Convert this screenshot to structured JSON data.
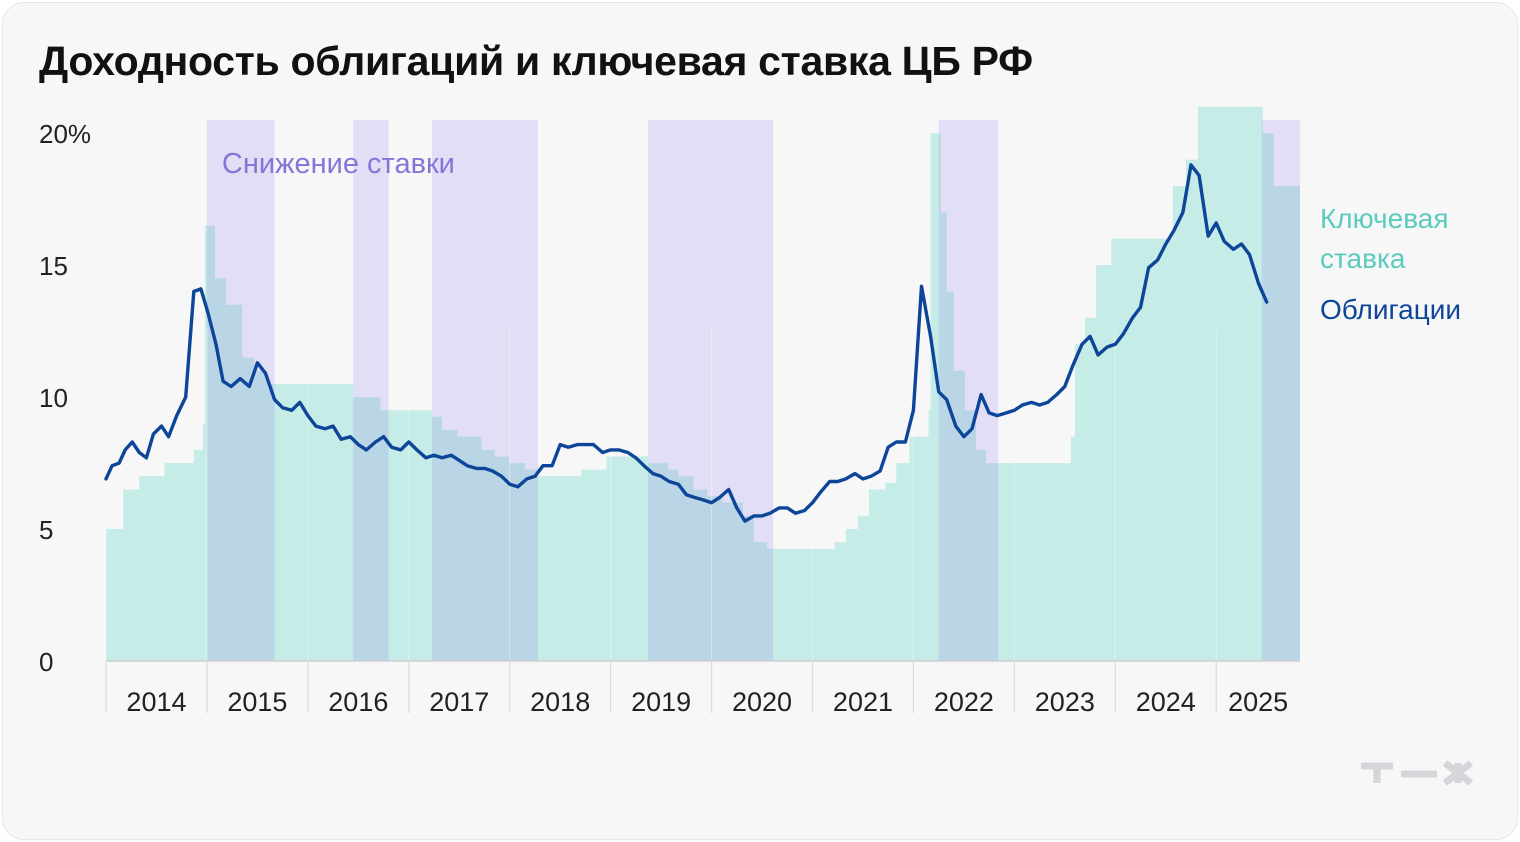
{
  "title": "Доходность облигаций и ключевая ставка ЦБ РФ",
  "chart_data": {
    "type": "area",
    "title": "Доходность облигаций и ключевая ставка ЦБ РФ",
    "xlabel": "",
    "ylabel": "",
    "ylim": [
      0,
      20.5
    ],
    "xlim": [
      2014.0,
      2025.83
    ],
    "y_ticks": [
      {
        "value": 0,
        "label": "0"
      },
      {
        "value": 5,
        "label": "5"
      },
      {
        "value": 10,
        "label": "10"
      },
      {
        "value": 15,
        "label": "15"
      },
      {
        "value": 20,
        "label": "20%"
      }
    ],
    "x_ticks": [
      "2014",
      "2015",
      "2016",
      "2017",
      "2018",
      "2019",
      "2020",
      "2021",
      "2022",
      "2023",
      "2024",
      "2025"
    ],
    "shading_label": "Снижение ставки",
    "rate_cut_periods": [
      [
        2015.0,
        2015.67
      ],
      [
        2016.45,
        2016.8
      ],
      [
        2017.23,
        2018.28
      ],
      [
        2019.37,
        2020.61
      ],
      [
        2022.25,
        2022.84
      ],
      [
        2025.45,
        2025.83
      ]
    ],
    "series": [
      {
        "name": "Ключевая ставка",
        "kind": "step-area",
        "color": "#c5ece6",
        "points": [
          [
            2014.0,
            5.0
          ],
          [
            2014.17,
            6.5
          ],
          [
            2014.33,
            7.0
          ],
          [
            2014.58,
            7.5
          ],
          [
            2014.87,
            8.0
          ],
          [
            2014.96,
            9.0
          ],
          [
            2014.98,
            16.5
          ],
          [
            2015.08,
            14.5
          ],
          [
            2015.19,
            13.5
          ],
          [
            2015.35,
            11.5
          ],
          [
            2015.47,
            11.0
          ],
          [
            2015.6,
            10.5
          ],
          [
            2016.45,
            10.0
          ],
          [
            2016.72,
            9.5
          ],
          [
            2017.23,
            9.25
          ],
          [
            2017.33,
            8.75
          ],
          [
            2017.48,
            8.5
          ],
          [
            2017.72,
            8.0
          ],
          [
            2017.85,
            7.75
          ],
          [
            2018.0,
            7.5
          ],
          [
            2018.15,
            7.25
          ],
          [
            2018.28,
            7.0
          ],
          [
            2018.71,
            7.25
          ],
          [
            2018.96,
            7.75
          ],
          [
            2019.37,
            7.5
          ],
          [
            2019.57,
            7.25
          ],
          [
            2019.67,
            7.0
          ],
          [
            2019.82,
            6.5
          ],
          [
            2019.96,
            6.25
          ],
          [
            2020.11,
            6.0
          ],
          [
            2020.31,
            5.5
          ],
          [
            2020.42,
            4.5
          ],
          [
            2020.55,
            4.25
          ],
          [
            2021.22,
            4.5
          ],
          [
            2021.33,
            5.0
          ],
          [
            2021.45,
            5.5
          ],
          [
            2021.56,
            6.5
          ],
          [
            2021.72,
            6.75
          ],
          [
            2021.83,
            7.5
          ],
          [
            2021.96,
            8.5
          ],
          [
            2022.15,
            9.5
          ],
          [
            2022.17,
            20.0
          ],
          [
            2022.27,
            17.0
          ],
          [
            2022.33,
            14.0
          ],
          [
            2022.4,
            11.0
          ],
          [
            2022.51,
            9.5
          ],
          [
            2022.62,
            8.0
          ],
          [
            2022.72,
            7.5
          ],
          [
            2023.56,
            8.5
          ],
          [
            2023.6,
            12.0
          ],
          [
            2023.7,
            13.0
          ],
          [
            2023.81,
            15.0
          ],
          [
            2023.96,
            16.0
          ],
          [
            2024.57,
            18.0
          ],
          [
            2024.7,
            19.0
          ],
          [
            2024.82,
            21.0
          ],
          [
            2025.46,
            20.0
          ],
          [
            2025.57,
            18.0
          ],
          [
            2025.83,
            18.0
          ]
        ]
      },
      {
        "name": "Облигации",
        "kind": "line",
        "color": "#0d4599",
        "points": [
          [
            2014.0,
            6.9
          ],
          [
            2014.06,
            7.4
          ],
          [
            2014.13,
            7.5
          ],
          [
            2014.19,
            8.0
          ],
          [
            2014.26,
            8.3
          ],
          [
            2014.33,
            7.9
          ],
          [
            2014.4,
            7.7
          ],
          [
            2014.47,
            8.6
          ],
          [
            2014.55,
            8.9
          ],
          [
            2014.62,
            8.5
          ],
          [
            2014.7,
            9.3
          ],
          [
            2014.79,
            10.0
          ],
          [
            2014.87,
            14.0
          ],
          [
            2014.94,
            14.1
          ],
          [
            2015.01,
            13.2
          ],
          [
            2015.09,
            12.0
          ],
          [
            2015.16,
            10.6
          ],
          [
            2015.24,
            10.4
          ],
          [
            2015.33,
            10.7
          ],
          [
            2015.42,
            10.4
          ],
          [
            2015.5,
            11.3
          ],
          [
            2015.58,
            10.9
          ],
          [
            2015.67,
            9.9
          ],
          [
            2015.75,
            9.6
          ],
          [
            2015.84,
            9.5
          ],
          [
            2015.92,
            9.8
          ],
          [
            2016.0,
            9.3
          ],
          [
            2016.08,
            8.9
          ],
          [
            2016.17,
            8.8
          ],
          [
            2016.25,
            8.9
          ],
          [
            2016.33,
            8.4
          ],
          [
            2016.42,
            8.5
          ],
          [
            2016.5,
            8.2
          ],
          [
            2016.58,
            8.0
          ],
          [
            2016.67,
            8.3
          ],
          [
            2016.75,
            8.5
          ],
          [
            2016.83,
            8.1
          ],
          [
            2016.92,
            8.0
          ],
          [
            2017.0,
            8.3
          ],
          [
            2017.08,
            8.0
          ],
          [
            2017.17,
            7.7
          ],
          [
            2017.25,
            7.8
          ],
          [
            2017.33,
            7.7
          ],
          [
            2017.42,
            7.8
          ],
          [
            2017.5,
            7.6
          ],
          [
            2017.58,
            7.4
          ],
          [
            2017.67,
            7.3
          ],
          [
            2017.75,
            7.3
          ],
          [
            2017.83,
            7.2
          ],
          [
            2017.92,
            7.0
          ],
          [
            2018.0,
            6.7
          ],
          [
            2018.08,
            6.6
          ],
          [
            2018.17,
            6.9
          ],
          [
            2018.25,
            7.0
          ],
          [
            2018.33,
            7.4
          ],
          [
            2018.42,
            7.4
          ],
          [
            2018.5,
            8.2
          ],
          [
            2018.58,
            8.1
          ],
          [
            2018.67,
            8.2
          ],
          [
            2018.75,
            8.2
          ],
          [
            2018.83,
            8.2
          ],
          [
            2018.92,
            7.9
          ],
          [
            2019.0,
            8.0
          ],
          [
            2019.08,
            8.0
          ],
          [
            2019.17,
            7.9
          ],
          [
            2019.25,
            7.7
          ],
          [
            2019.33,
            7.4
          ],
          [
            2019.42,
            7.1
          ],
          [
            2019.5,
            7.0
          ],
          [
            2019.58,
            6.8
          ],
          [
            2019.67,
            6.7
          ],
          [
            2019.75,
            6.3
          ],
          [
            2019.83,
            6.2
          ],
          [
            2019.92,
            6.1
          ],
          [
            2020.0,
            6.0
          ],
          [
            2020.08,
            6.2
          ],
          [
            2020.17,
            6.5
          ],
          [
            2020.25,
            5.8
          ],
          [
            2020.33,
            5.3
          ],
          [
            2020.42,
            5.5
          ],
          [
            2020.5,
            5.5
          ],
          [
            2020.58,
            5.6
          ],
          [
            2020.67,
            5.8
          ],
          [
            2020.75,
            5.8
          ],
          [
            2020.83,
            5.6
          ],
          [
            2020.92,
            5.7
          ],
          [
            2021.0,
            6.0
          ],
          [
            2021.08,
            6.4
          ],
          [
            2021.17,
            6.8
          ],
          [
            2021.25,
            6.8
          ],
          [
            2021.33,
            6.9
          ],
          [
            2021.42,
            7.1
          ],
          [
            2021.5,
            6.9
          ],
          [
            2021.58,
            7.0
          ],
          [
            2021.67,
            7.2
          ],
          [
            2021.75,
            8.1
          ],
          [
            2021.83,
            8.3
          ],
          [
            2021.92,
            8.3
          ],
          [
            2022.0,
            9.5
          ],
          [
            2022.08,
            14.2
          ],
          [
            2022.17,
            12.3
          ],
          [
            2022.25,
            10.2
          ],
          [
            2022.33,
            9.9
          ],
          [
            2022.42,
            8.9
          ],
          [
            2022.5,
            8.5
          ],
          [
            2022.58,
            8.8
          ],
          [
            2022.67,
            10.1
          ],
          [
            2022.75,
            9.4
          ],
          [
            2022.83,
            9.3
          ],
          [
            2022.92,
            9.4
          ],
          [
            2023.0,
            9.5
          ],
          [
            2023.08,
            9.7
          ],
          [
            2023.17,
            9.8
          ],
          [
            2023.25,
            9.7
          ],
          [
            2023.33,
            9.8
          ],
          [
            2023.42,
            10.1
          ],
          [
            2023.5,
            10.4
          ],
          [
            2023.58,
            11.2
          ],
          [
            2023.67,
            12.0
          ],
          [
            2023.75,
            12.3
          ],
          [
            2023.83,
            11.6
          ],
          [
            2023.92,
            11.9
          ],
          [
            2024.0,
            12.0
          ],
          [
            2024.08,
            12.4
          ],
          [
            2024.17,
            13.0
          ],
          [
            2024.25,
            13.4
          ],
          [
            2024.33,
            14.9
          ],
          [
            2024.42,
            15.2
          ],
          [
            2024.5,
            15.8
          ],
          [
            2024.58,
            16.3
          ],
          [
            2024.67,
            17.0
          ],
          [
            2024.75,
            18.8
          ],
          [
            2024.83,
            18.4
          ],
          [
            2024.92,
            16.1
          ],
          [
            2025.0,
            16.6
          ],
          [
            2025.08,
            15.9
          ],
          [
            2025.17,
            15.6
          ],
          [
            2025.25,
            15.8
          ],
          [
            2025.33,
            15.4
          ],
          [
            2025.42,
            14.3
          ],
          [
            2025.5,
            13.6
          ]
        ]
      }
    ],
    "legend": [
      {
        "lines": [
          "Ключевая",
          "ставка"
        ],
        "color": "#5ccbbd"
      },
      {
        "lines": [
          "Облигации"
        ],
        "color": "#0d4599"
      }
    ]
  },
  "colors": {
    "cut_shading": "#e2def5",
    "shading_label": "#8675d9",
    "rate_fill": "#c5ece6",
    "overlap_fill": "#bad5e6",
    "bond_line": "#0d4599",
    "logo": "#d6d6da"
  },
  "brand": "т—ж"
}
